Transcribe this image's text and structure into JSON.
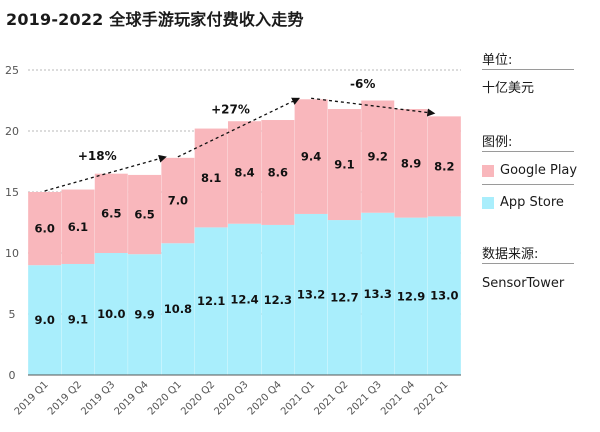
{
  "title": "2019-2022 全球手游玩家付费收入走势",
  "side": {
    "unit_label": "单位:",
    "unit_value": "十亿美元",
    "legend_label": "图例:",
    "source_label": "数据来源:",
    "source_value": "SensorTower"
  },
  "colors": {
    "google_play": "#f9b7bc",
    "app_store": "#a9eefc"
  },
  "chart_data": {
    "type": "bar",
    "stacked": true,
    "title": "",
    "xlabel": "",
    "ylabel": "",
    "ylim": [
      0,
      25
    ],
    "yticks": [
      0,
      5,
      10,
      15,
      20,
      25
    ],
    "grid": true,
    "legend_position": "right",
    "categories": [
      "2019 Q1",
      "2019 Q2",
      "2019 Q3",
      "2019 Q4",
      "2020 Q1",
      "2020 Q2",
      "2020 Q3",
      "2020 Q4",
      "2021 Q1",
      "2021 Q2",
      "2021 Q3",
      "2021 Q4",
      "2022 Q1"
    ],
    "series": [
      {
        "name": "App Store",
        "values": [
          9.0,
          9.1,
          10.0,
          9.9,
          10.8,
          12.1,
          12.4,
          12.3,
          13.2,
          12.7,
          13.3,
          12.9,
          13.0
        ],
        "labels": [
          "9.0",
          "9.1",
          "10.0",
          "9.9",
          "10.8",
          "12.1",
          "12.4",
          "12.3",
          "13.2",
          "12.7",
          "13.3",
          "12.9",
          "13.0"
        ]
      },
      {
        "name": "Google Play",
        "values": [
          6.0,
          6.1,
          6.5,
          6.5,
          7.0,
          8.1,
          8.4,
          8.6,
          9.4,
          9.1,
          9.2,
          8.9,
          8.2
        ],
        "labels": [
          "6.0",
          "6.1",
          "6.5",
          "6.5",
          "7.0",
          "8.1",
          "8.4",
          "8.6",
          "9.4",
          "9.1",
          "9.2",
          "8.9",
          "8.2"
        ]
      }
    ],
    "annotations": [
      {
        "text": "+18%",
        "from": 0,
        "to": 4
      },
      {
        "text": "+27%",
        "from": 4,
        "to": 8
      },
      {
        "text": "-6%",
        "from": 8,
        "to": 12
      }
    ]
  }
}
